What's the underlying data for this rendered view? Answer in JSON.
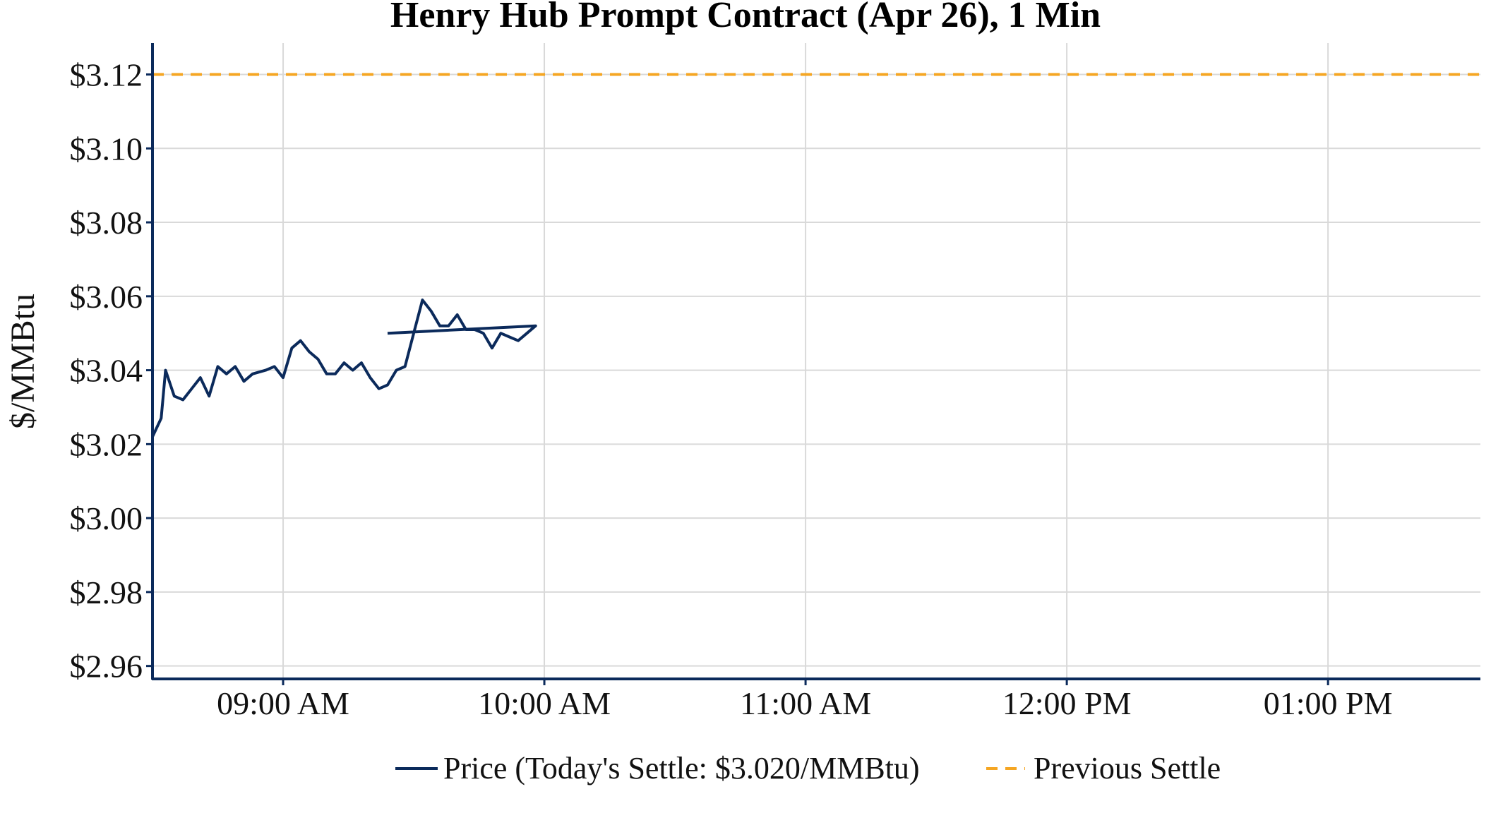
{
  "chart_data": {
    "type": "line",
    "title": "Henry Hub Prompt Contract (Apr 26), 1 Min",
    "ylabel": "$/MMBtu",
    "xlabel": "",
    "xlim": [
      "08:30",
      "13:35"
    ],
    "ylim": [
      2.9565,
      3.1285
    ],
    "grid": true,
    "legend_position": "bottom-center",
    "x_tick_labels": [
      "09:00 AM",
      "10:00 AM",
      "11:00 AM",
      "12:00 PM",
      "01:00 PM"
    ],
    "x_tick_times": [
      "09:00",
      "10:00",
      "11:00",
      "12:00",
      "13:00"
    ],
    "y_tick_labels": [
      "$2.96",
      "$2.98",
      "$3.00",
      "$3.02",
      "$3.04",
      "$3.06",
      "$3.08",
      "$3.10",
      "$3.12"
    ],
    "y_tick_values": [
      2.96,
      2.98,
      3.0,
      3.02,
      3.04,
      3.06,
      3.08,
      3.1,
      3.12
    ],
    "colors": {
      "price": "#0b2a5b",
      "previous_settle": "#f5a623",
      "axis": "#0b2a5b",
      "grid": "#d9d9d9"
    },
    "series": [
      {
        "name": "Price (Today's Settle: $3.020/MMBtu)",
        "style": "solid",
        "points": [
          [
            "08:30",
            3.022
          ],
          [
            "08:32",
            3.027
          ],
          [
            "08:33",
            3.04
          ],
          [
            "08:35",
            3.033
          ],
          [
            "08:37",
            3.032
          ],
          [
            "08:39",
            3.035
          ],
          [
            "08:41",
            3.038
          ],
          [
            "08:43",
            3.033
          ],
          [
            "08:45",
            3.041
          ],
          [
            "08:47",
            3.039
          ],
          [
            "08:49",
            3.041
          ],
          [
            "08:51",
            3.037
          ],
          [
            "08:53",
            3.039
          ],
          [
            "08:56",
            3.04
          ],
          [
            "08:58",
            3.041
          ],
          [
            "09:00",
            3.038
          ],
          [
            "09:02",
            3.046
          ],
          [
            "09:04",
            3.048
          ],
          [
            "09:06",
            3.045
          ],
          [
            "09:08",
            3.043
          ],
          [
            "09:10",
            3.039
          ],
          [
            "09:12",
            3.039
          ],
          [
            "09:14",
            3.042
          ],
          [
            "09:16",
            3.04
          ],
          [
            "09:18",
            3.042
          ],
          [
            "09:20",
            3.038
          ],
          [
            "09:22",
            3.035
          ],
          [
            "09:24",
            3.036
          ],
          [
            "09:26",
            3.04
          ],
          [
            "09:28",
            3.041
          ],
          [
            "09:30",
            3.05
          ],
          [
            "09:32",
            3.059
          ],
          [
            "09:34",
            3.056
          ],
          [
            "09:36",
            3.052
          ],
          [
            "09:38",
            3.052
          ],
          [
            "09:40",
            3.055
          ],
          [
            "09:42",
            3.051
          ],
          [
            "09:44",
            3.051
          ],
          [
            "09:46",
            3.05
          ],
          [
            "09:48",
            3.046
          ],
          [
            "09:50",
            3.05
          ],
          [
            "09:52",
            3.049
          ],
          [
            "09:54",
            3.048
          ],
          [
            "09:56",
            3.05
          ],
          [
            "09:58",
            3.052
          ],
          [
            "09:24",
            3.05
          ]
        ]
      },
      {
        "name": "Previous Settle",
        "style": "dashed",
        "value": 3.12
      }
    ]
  }
}
